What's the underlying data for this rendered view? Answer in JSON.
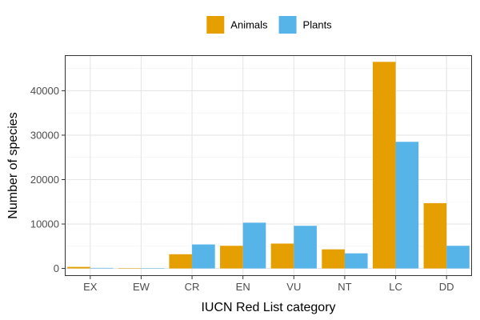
{
  "chart_data": {
    "type": "bar",
    "title": "",
    "xlabel": "IUCN Red List category",
    "ylabel": "Number of species",
    "categories": [
      "EX",
      "EW",
      "CR",
      "EN",
      "VU",
      "NT",
      "LC",
      "DD"
    ],
    "series": [
      {
        "name": "Animals",
        "color": "#E69F00",
        "values": [
          350,
          30,
          3200,
          5100,
          5600,
          4300,
          46500,
          14700
        ]
      },
      {
        "name": "Plants",
        "color": "#56B4E9",
        "values": [
          120,
          60,
          5400,
          10300,
          9600,
          3400,
          28500,
          5100
        ]
      }
    ],
    "ylim": [
      -1700,
      48000
    ],
    "yticks": [
      0,
      10000,
      20000,
      30000,
      40000
    ],
    "ytick_labels": [
      "0",
      "10000",
      "20000",
      "30000",
      "40000"
    ],
    "grid": true,
    "legend_position": "top"
  }
}
